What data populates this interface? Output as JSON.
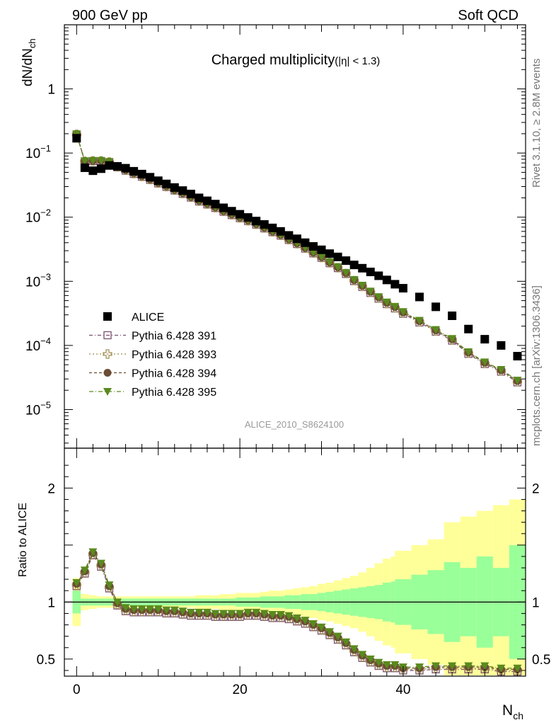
{
  "header": {
    "left": "900 GeV pp",
    "right": "Soft QCD",
    "title_main": "Charged multiplicity",
    "title_sub": "(|η| < 1.3)",
    "analysis_id": "ALICE_2010_S8624100",
    "side_top": "Rivet 3.1.10, ≥ 2.8M events",
    "side_bottom": "mcplots.cern.ch [arXiv:1306.3436]"
  },
  "colors": {
    "alice": "#000000",
    "p391": "#7b4f6e",
    "p393": "#a08d55",
    "p394": "#6b4c34",
    "p395": "#5a8a1e",
    "band_outer": "#ffff99",
    "band_inner": "#99ff99"
  },
  "chart_data": [
    {
      "type": "scatter",
      "ylabel_main": "dN/dN",
      "ylabel_sub": "ch",
      "yscale": "log",
      "ylim": [
        2.5e-06,
        10
      ],
      "xlim": [
        -1.5,
        55
      ],
      "y_ticks": [
        {
          "value": 1,
          "label": "1"
        },
        {
          "value": 0.1,
          "label": "10",
          "exp": "−1"
        },
        {
          "value": 0.01,
          "label": "10",
          "exp": "−2"
        },
        {
          "value": 0.001,
          "label": "10",
          "exp": "−3"
        },
        {
          "value": 0.0001,
          "label": "10",
          "exp": "−4"
        },
        {
          "value": 1e-05,
          "label": "10",
          "exp": "−5"
        }
      ],
      "legend": [
        {
          "key": "alice",
          "label": "ALICE"
        },
        {
          "key": "p391",
          "label": "Pythia 6.428 391"
        },
        {
          "key": "p393",
          "label": "Pythia 6.428 393"
        },
        {
          "key": "p394",
          "label": "Pythia 6.428 394"
        },
        {
          "key": "p395",
          "label": "Pythia 6.428 395"
        }
      ],
      "x": [
        0,
        1,
        2,
        3,
        4,
        5,
        6,
        7,
        8,
        9,
        10,
        11,
        12,
        13,
        14,
        15,
        16,
        17,
        18,
        19,
        20,
        21,
        22,
        23,
        24,
        25,
        26,
        27,
        28,
        29,
        30,
        31,
        32,
        33,
        34,
        35,
        36,
        37,
        38,
        39,
        40,
        42,
        44,
        46,
        48,
        50,
        52,
        54
      ],
      "alice": [
        0.17,
        0.059,
        0.053,
        0.057,
        0.064,
        0.062,
        0.058,
        0.052,
        0.047,
        0.042,
        0.037,
        0.033,
        0.029,
        0.026,
        0.023,
        0.02,
        0.018,
        0.016,
        0.014,
        0.0124,
        0.0111,
        0.0099,
        0.0087,
        0.0077,
        0.0068,
        0.006,
        0.0052,
        0.0046,
        0.004,
        0.0035,
        0.0031,
        0.0027,
        0.0024,
        0.0021,
        0.0018,
        0.0016,
        0.0014,
        0.00122,
        0.00105,
        0.0009,
        0.00078,
        0.00057,
        0.0004,
        0.00029,
        0.00018,
        0.000125,
        0.0001,
        6.8e-05
      ]
    },
    {
      "type": "scatter",
      "ylabel": "Ratio to ALICE",
      "xlabel_main": "N",
      "xlabel_sub": "ch",
      "ylim": [
        0.35,
        2.35
      ],
      "xlim": [
        -1.5,
        55
      ],
      "y_ticks": [
        {
          "value": 0.5,
          "label": "0.5"
        },
        {
          "value": 1,
          "label": "1"
        },
        {
          "value": 2,
          "label": "2"
        }
      ],
      "x_ticks": [
        {
          "value": 0,
          "label": "0"
        },
        {
          "value": 20,
          "label": "20"
        },
        {
          "value": 40,
          "label": "40"
        }
      ],
      "x": [
        0,
        1,
        2,
        3,
        4,
        5,
        6,
        7,
        8,
        9,
        10,
        11,
        12,
        13,
        14,
        15,
        16,
        17,
        18,
        19,
        20,
        21,
        22,
        23,
        24,
        25,
        26,
        27,
        28,
        29,
        30,
        31,
        32,
        33,
        34,
        35,
        36,
        37,
        38,
        39,
        40,
        42,
        44,
        46,
        48,
        50,
        52,
        54
      ],
      "ratio": [
        1.15,
        1.26,
        1.42,
        1.32,
        1.13,
        0.98,
        0.93,
        0.92,
        0.92,
        0.92,
        0.92,
        0.91,
        0.91,
        0.9,
        0.89,
        0.89,
        0.89,
        0.88,
        0.88,
        0.88,
        0.88,
        0.89,
        0.89,
        0.88,
        0.87,
        0.87,
        0.86,
        0.84,
        0.82,
        0.79,
        0.76,
        0.72,
        0.68,
        0.63,
        0.57,
        0.52,
        0.48,
        0.45,
        0.43,
        0.43,
        0.41,
        0.41,
        0.42,
        0.42,
        0.42,
        0.42,
        0.4,
        0.4
      ],
      "model_offsets": {
        "p391": -0.01,
        "p393": 0.0,
        "p394": 0.01,
        "p395": 0.02
      },
      "band_inner": [
        0.1,
        0.03,
        0.03,
        0.03,
        0.03,
        0.03,
        0.03,
        0.03,
        0.03,
        0.03,
        0.03,
        0.03,
        0.03,
        0.03,
        0.03,
        0.03,
        0.03,
        0.03,
        0.03,
        0.03,
        0.04,
        0.04,
        0.04,
        0.05,
        0.05,
        0.05,
        0.06,
        0.06,
        0.07,
        0.07,
        0.08,
        0.09,
        0.1,
        0.11,
        0.12,
        0.13,
        0.14,
        0.15,
        0.17,
        0.18,
        0.2,
        0.24,
        0.28,
        0.35,
        0.3,
        0.4,
        0.3,
        0.5
      ],
      "band_outer": [
        0.21,
        0.07,
        0.06,
        0.05,
        0.05,
        0.05,
        0.05,
        0.05,
        0.05,
        0.05,
        0.05,
        0.05,
        0.05,
        0.05,
        0.05,
        0.06,
        0.06,
        0.06,
        0.07,
        0.07,
        0.08,
        0.08,
        0.08,
        0.09,
        0.1,
        0.1,
        0.11,
        0.12,
        0.13,
        0.14,
        0.16,
        0.17,
        0.19,
        0.21,
        0.23,
        0.26,
        0.3,
        0.34,
        0.38,
        0.4,
        0.45,
        0.5,
        0.55,
        0.7,
        0.75,
        0.8,
        0.85,
        0.9
      ]
    }
  ]
}
